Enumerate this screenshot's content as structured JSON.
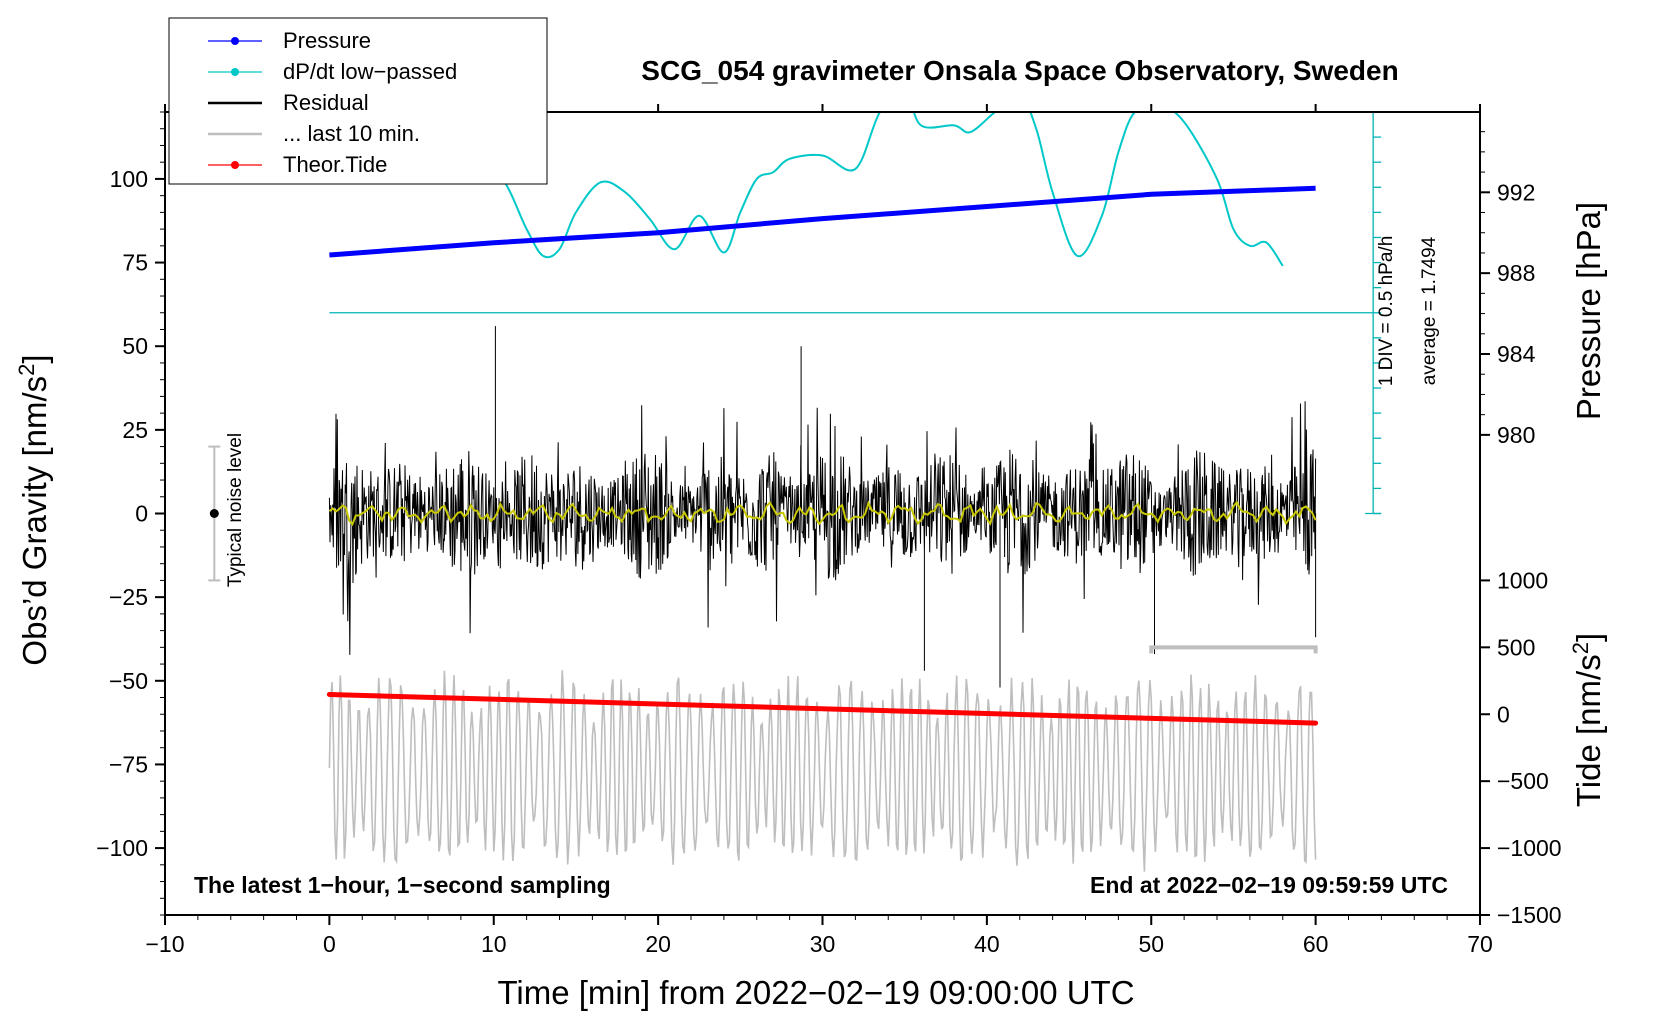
{
  "chart_data": {
    "type": "line",
    "title": "SCG_054 gravimeter Onsala Space Observatory, Sweden",
    "xlabel": "Time [min] from 2022−02−19 09:00:00 UTC",
    "ylabel_left_main": "Obs’d Gravity [nm/s",
    "ylabel_left_sup": "2",
    "ylabel_left_end": "]",
    "ylabel_right_upper": "Pressure [hPa]",
    "ylabel_right_lower_main": "Tide [nm/s",
    "ylabel_right_lower_sup": "2",
    "ylabel_right_lower_end": "]",
    "xlim": [
      -10,
      70
    ],
    "ylim": [
      -120,
      120
    ],
    "x_ticks": [
      {
        "value": -10,
        "label": "−10"
      },
      {
        "value": 0,
        "label": "0"
      },
      {
        "value": 10,
        "label": "10"
      },
      {
        "value": 20,
        "label": "20"
      },
      {
        "value": 30,
        "label": "30"
      },
      {
        "value": 40,
        "label": "40"
      },
      {
        "value": 50,
        "label": "50"
      },
      {
        "value": 60,
        "label": "60"
      },
      {
        "value": 70,
        "label": "70"
      }
    ],
    "y_ticks_left": [
      {
        "value": 100,
        "label": "100"
      },
      {
        "value": 75,
        "label": "75"
      },
      {
        "value": 50,
        "label": "50"
      },
      {
        "value": 25,
        "label": "25"
      },
      {
        "value": 0,
        "label": "0"
      },
      {
        "value": -25,
        "label": "−25"
      },
      {
        "value": -50,
        "label": "−50"
      },
      {
        "value": -75,
        "label": "−75"
      },
      {
        "value": -100,
        "label": "−100"
      }
    ],
    "y_ticks_pressure": [
      {
        "value": 992,
        "label": "992"
      },
      {
        "value": 988,
        "label": "988"
      },
      {
        "value": 984,
        "label": "984"
      },
      {
        "value": 980,
        "label": "980"
      }
    ],
    "pressure_map": {
      "data": [
        980,
        992
      ],
      "gravity": [
        23.5,
        96
      ]
    },
    "y_ticks_tide": [
      {
        "value": 1000,
        "label": "1000"
      },
      {
        "value": 500,
        "label": "500"
      },
      {
        "value": 0,
        "label": "0"
      },
      {
        "value": -500,
        "label": "−500"
      },
      {
        "value": -1000,
        "label": "−1000"
      },
      {
        "value": -1500,
        "label": "−1500"
      }
    ],
    "tide_map": {
      "data": [
        -1500,
        1000
      ],
      "gravity": [
        -120,
        -20
      ]
    },
    "legend": [
      {
        "label": "Pressure",
        "color": "#0000ff",
        "style": "line-dot"
      },
      {
        "label": "dP/dt low−passed",
        "color": "#00c8c8",
        "style": "line-dot"
      },
      {
        "label": "Residual",
        "color": "#000000",
        "style": "line"
      },
      {
        "label": "... last 10 min.",
        "color": "#bebebe",
        "style": "line"
      },
      {
        "label": "Theor.Tide",
        "color": "#ff0000",
        "style": "line-dot"
      }
    ],
    "series": [
      {
        "name": "Pressure",
        "color": "#0000ff",
        "unit": "hPa",
        "x": [
          0,
          10,
          20,
          30,
          40,
          50,
          60
        ],
        "values": [
          988.9,
          989.5,
          990.0,
          990.7,
          991.3,
          991.9,
          992.2
        ]
      },
      {
        "name": "dP/dt low−passed",
        "color": "#00c8c8",
        "unit": "gravity-axis units",
        "x": [
          9,
          10.5,
          12,
          13,
          14,
          15,
          16.5,
          18,
          19.5,
          21,
          22.5,
          24,
          25,
          26,
          27,
          28,
          30,
          32,
          33.5,
          35,
          36,
          38,
          39,
          40.5,
          42,
          43,
          44,
          45.5,
          47,
          48,
          49,
          50.5,
          52,
          54,
          55,
          56,
          57,
          58
        ],
        "values": [
          100,
          100,
          85,
          77,
          79,
          90,
          99,
          96,
          88,
          79,
          89,
          78,
          90,
          100,
          102,
          106,
          107,
          103,
          120,
          126,
          116,
          116,
          114,
          120,
          125,
          115,
          96,
          77,
          89,
          108,
          120,
          122,
          117,
          100,
          85,
          80,
          81,
          74
        ]
      },
      {
        "name": "Residual",
        "color": "#000000",
        "unit": "nm/s2",
        "x_range": [
          0,
          60
        ],
        "amplitude": 12,
        "extremes": {
          "max": 56,
          "min": -52
        }
      },
      {
        "name": "Residual low−passed",
        "color": "#c8c800",
        "unit": "nm/s2",
        "x_range": [
          0,
          60
        ],
        "amplitude": 2.5
      },
      {
        "name": "... last 10 min.",
        "color": "#bebebe",
        "unit": "nm/s2 (zoomed)",
        "x_range": [
          0,
          60
        ],
        "offset": -77,
        "amplitude": 28
      },
      {
        "name": "Theor.Tide",
        "color": "#ff0000",
        "unit": "nm/s2",
        "x": [
          0,
          60
        ],
        "values": [
          148,
          -66
        ]
      }
    ],
    "annotations": {
      "cyan_scale_line1": "1 DIV = 0.5 hPa/h",
      "cyan_scale_line2": "average = 1.7494",
      "noise_label": "Typical noise level",
      "noise_range": [
        -20,
        20
      ],
      "bottom_left": "The latest 1−hour, 1−second sampling",
      "bottom_right": "End at 2022−02−19 09:59:59 UTC",
      "last10_bracket": [
        50,
        60
      ]
    }
  }
}
